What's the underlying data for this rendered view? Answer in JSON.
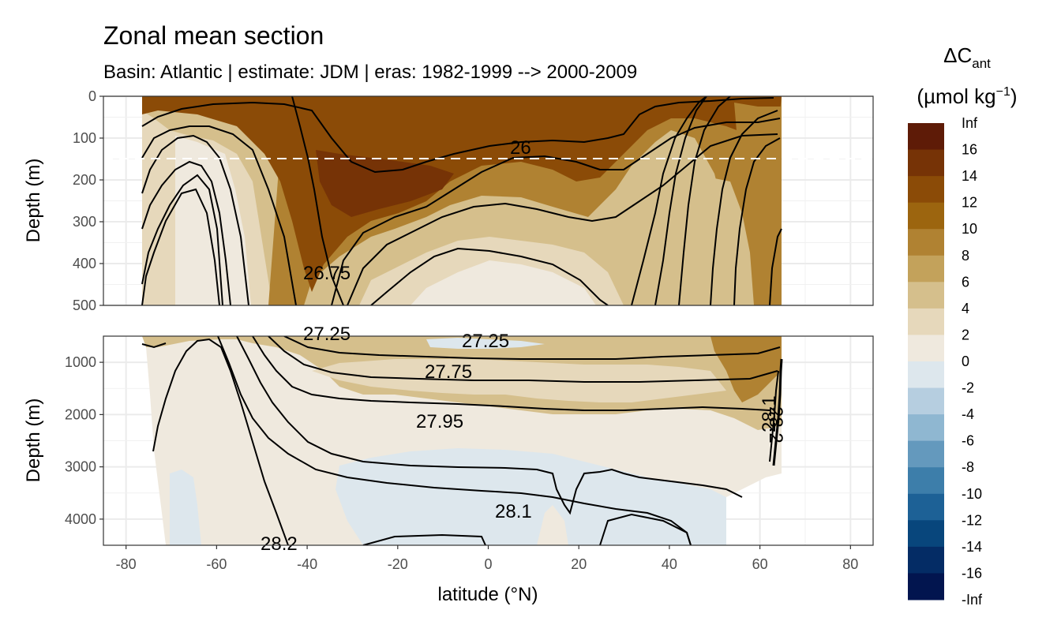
{
  "chart_data": {
    "type": "heatmap",
    "title": "Zonal mean section",
    "subtitle": "Basin: Atlantic | estimate: JDM  | eras: 1982-1999 --> 2000-2009",
    "xlabel": "latitude (°N)",
    "ylabel_top": "Depth (m)",
    "ylabel_bottom": "Depth (m)",
    "xlim": [
      -85,
      85
    ],
    "x_ticks": [
      "-80",
      "-60",
      "-40",
      "-20",
      "0",
      "20",
      "40",
      "60",
      "80"
    ],
    "top_panel": {
      "ylim": [
        0,
        500
      ],
      "y_ticks": [
        "0",
        "100",
        "200",
        "300",
        "400",
        "500"
      ],
      "reference_line_depth": 150
    },
    "bottom_panel": {
      "ylim": [
        500,
        4500
      ],
      "y_ticks": [
        "1000",
        "2000",
        "3000",
        "4000"
      ]
    },
    "legend": {
      "title_main": "ΔC",
      "title_sub": "ant",
      "title_units": "(µmol kg",
      "title_units_sup": "−1",
      "title_units_end": ")",
      "labels": [
        "Inf",
        "16",
        "14",
        "12",
        "10",
        "8",
        "6",
        "4",
        "2",
        "0",
        "-2",
        "-4",
        "-6",
        "-8",
        "-10",
        "-12",
        "-14",
        "-16",
        "-Inf"
      ],
      "colors": [
        "#5e1b07",
        "#763306",
        "#8b4b07",
        "#9c650f",
        "#b08232",
        "#c3a25b",
        "#d5bf8c",
        "#e6d8bb",
        "#efe9de",
        "#dde7ed",
        "#b6cee0",
        "#8fb7d1",
        "#6499bd",
        "#3d7eaa",
        "#1d6196",
        "#08467c",
        "#042c65",
        "#02154f"
      ]
    },
    "contour_labels": [
      "26",
      "26.75",
      "27.25",
      "27.75",
      "27.95",
      "28.1",
      "28.2",
      "28.2",
      "27.25",
      "28.1"
    ],
    "band_colors": {
      "c_deep_brown": "#763306",
      "c_brown": "#8b4b07",
      "c_tan": "#b08232",
      "c_light_tan": "#d5bf8c",
      "c_beige": "#e6d8bb",
      "c_cream": "#efe9de",
      "c_pale_blue": "#dde7ed"
    }
  }
}
